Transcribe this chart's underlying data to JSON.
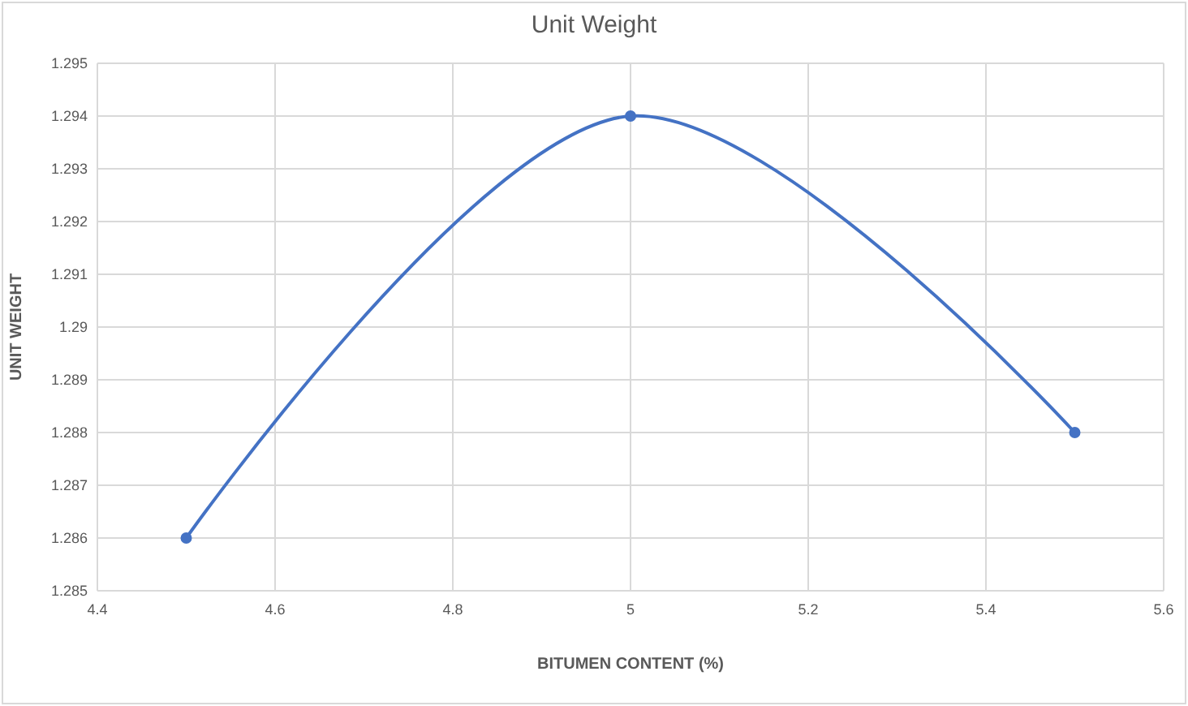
{
  "chart_data": {
    "type": "line",
    "title": "Unit Weight",
    "xlabel": "BITUMEN CONTENT (%)",
    "ylabel": "UNIT WEIGHT",
    "x": [
      4.5,
      5,
      5.5
    ],
    "series": [
      {
        "color": "#4472c4",
        "values": [
          1.286,
          1.294,
          1.288
        ]
      }
    ],
    "xlim": [
      4.4,
      5.6
    ],
    "xticks": [
      4.4,
      4.6,
      4.8,
      5,
      5.2,
      5.4,
      5.6
    ],
    "ylim": [
      1.285,
      1.295
    ],
    "yticks": [
      1.285,
      1.286,
      1.287,
      1.288,
      1.289,
      1.29,
      1.291,
      1.292,
      1.293,
      1.294,
      1.295
    ],
    "grid": true,
    "marker": "circle",
    "line_style": "solid"
  }
}
